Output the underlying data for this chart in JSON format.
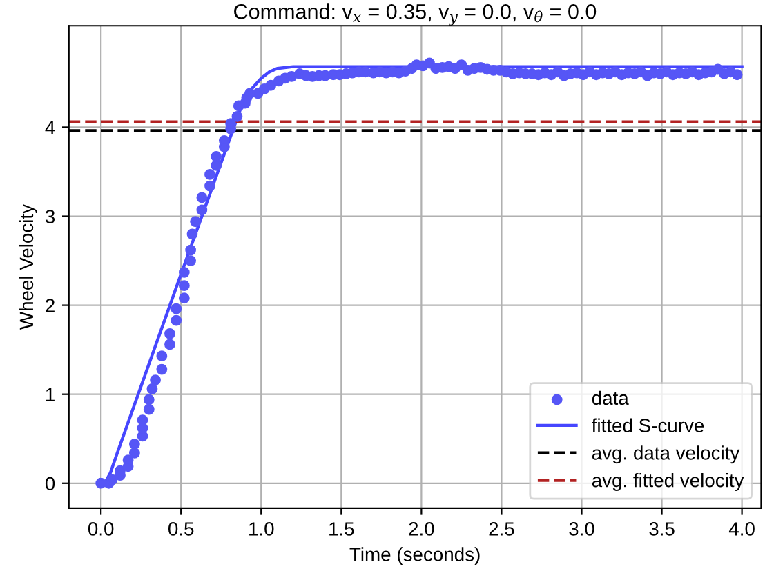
{
  "chart_data": {
    "type": "line",
    "title": "Command: v$_{x}$ = 0.35, v$_{y}$ = 0.0, v$_{θ}$ = 0.0",
    "xlabel": "Time (seconds)",
    "ylabel": "Wheel Velocity",
    "xlim": [
      -0.2,
      4.12
    ],
    "ylim": [
      -0.28,
      5.14
    ],
    "xticks": [
      {
        "value": 0,
        "label": "0.0"
      },
      0.5,
      {
        "value": 1,
        "label": "1.0"
      },
      1.5,
      {
        "value": 2,
        "label": "2.0"
      },
      2.5,
      {
        "value": 3,
        "label": "3.0"
      },
      3.5,
      {
        "value": 4,
        "label": "4.0"
      }
    ],
    "yticks": [
      0,
      1,
      2,
      3,
      4
    ],
    "grid": true,
    "legend": "bottom right",
    "series": [
      {
        "name": "data",
        "type": "scatter",
        "marker": "circle",
        "color": "#5656f6",
        "x": [
          0.0,
          0.05,
          0.07,
          0.12,
          0.12,
          0.17,
          0.17,
          0.21,
          0.21,
          0.26,
          0.26,
          0.26,
          0.3,
          0.3,
          0.32,
          0.34,
          0.38,
          0.38,
          0.43,
          0.43,
          0.47,
          0.47,
          0.52,
          0.52,
          0.52,
          0.56,
          0.56,
          0.57,
          0.59,
          0.63,
          0.63,
          0.68,
          0.68,
          0.72,
          0.72,
          0.77,
          0.77,
          0.81,
          0.81,
          0.85,
          0.86,
          0.9,
          0.91,
          0.93,
          0.98,
          1.02,
          1.06,
          1.11,
          1.15,
          1.19,
          1.24,
          1.28,
          1.32,
          1.36,
          1.4,
          1.45,
          1.49,
          1.53,
          1.57,
          1.61,
          1.65,
          1.7,
          1.74,
          1.78,
          1.82,
          1.86,
          1.9,
          1.94,
          1.97,
          2.01,
          2.05,
          2.09,
          2.13,
          2.17,
          2.21,
          2.25,
          2.29,
          2.33,
          2.37,
          2.41,
          2.45,
          2.49,
          2.53,
          2.57,
          2.61,
          2.65,
          2.69,
          2.73,
          2.77,
          2.81,
          2.85,
          2.89,
          2.93,
          2.97,
          3.01,
          3.05,
          3.09,
          3.13,
          3.17,
          3.21,
          3.25,
          3.29,
          3.33,
          3.37,
          3.41,
          3.45,
          3.49,
          3.53,
          3.57,
          3.61,
          3.65,
          3.69,
          3.73,
          3.77,
          3.81,
          3.85,
          3.89,
          3.93,
          3.97
        ],
        "values": [
          0.0,
          0.0,
          0.04,
          0.09,
          0.14,
          0.19,
          0.26,
          0.34,
          0.44,
          0.53,
          0.62,
          0.71,
          0.83,
          0.94,
          1.06,
          1.16,
          1.28,
          1.43,
          1.56,
          1.68,
          1.83,
          1.96,
          2.08,
          2.22,
          2.37,
          2.5,
          2.62,
          2.8,
          2.94,
          3.07,
          3.21,
          3.34,
          3.47,
          3.57,
          3.67,
          3.78,
          3.85,
          3.98,
          4.04,
          4.12,
          4.24,
          4.27,
          4.33,
          4.38,
          4.38,
          4.43,
          4.47,
          4.52,
          4.55,
          4.57,
          4.6,
          4.58,
          4.57,
          4.58,
          4.58,
          4.59,
          4.59,
          4.6,
          4.61,
          4.62,
          4.62,
          4.61,
          4.62,
          4.61,
          4.62,
          4.61,
          4.63,
          4.66,
          4.7,
          4.69,
          4.72,
          4.66,
          4.67,
          4.68,
          4.66,
          4.7,
          4.64,
          4.66,
          4.67,
          4.65,
          4.64,
          4.64,
          4.62,
          4.6,
          4.61,
          4.6,
          4.6,
          4.59,
          4.61,
          4.59,
          4.62,
          4.58,
          4.6,
          4.61,
          4.59,
          4.62,
          4.59,
          4.61,
          4.6,
          4.62,
          4.59,
          4.61,
          4.6,
          4.62,
          4.58,
          4.61,
          4.6,
          4.62,
          4.59,
          4.61,
          4.6,
          4.62,
          4.59,
          4.61,
          4.62,
          4.65,
          4.6,
          4.62,
          4.59
        ]
      },
      {
        "name": "fitted S-curve",
        "line_style": "solid",
        "color": "#4646ff",
        "x": [
          0.0,
          0.03,
          0.06,
          0.1,
          0.5,
          0.9,
          1.0,
          1.05,
          1.1,
          1.2,
          4.0
        ],
        "values": [
          0.0,
          0.02,
          0.12,
          0.33,
          2.35,
          4.35,
          4.55,
          4.62,
          4.66,
          4.68,
          4.68
        ]
      }
    ],
    "ref_lines": [
      {
        "axis": "y",
        "value": 3.96,
        "label": "avg. data velocity",
        "color": "#000000",
        "line_style": "dashed"
      },
      {
        "axis": "y",
        "value": 4.06,
        "label": "avg. fitted velocity",
        "color": "#b22222",
        "line_style": "dashed"
      }
    ]
  }
}
